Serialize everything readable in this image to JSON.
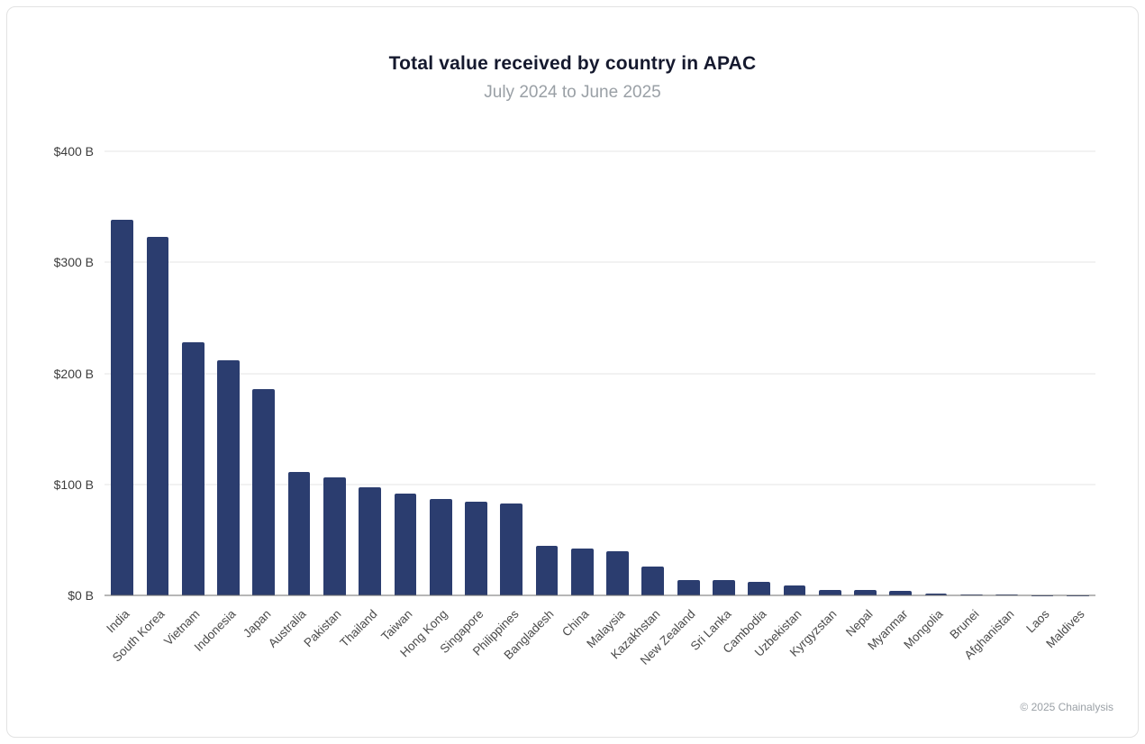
{
  "page": {
    "title": "Total value received by country in APAC",
    "subtitle": "July 2024 to June 2025",
    "footer": "© 2025 Chainalysis"
  },
  "chart_data": {
    "type": "bar",
    "title": "Total value received by country in APAC",
    "subtitle": "July 2024 to June 2025",
    "xlabel": "",
    "ylabel": "",
    "ylim": [
      0,
      400
    ],
    "yticks": [
      0,
      100,
      200,
      300,
      400
    ],
    "ytick_labels": [
      "$0 B",
      "$100 B",
      "$200 B",
      "$300 B",
      "$400 B"
    ],
    "grid": true,
    "legend": "none",
    "bar_color": "#2b3d6f",
    "categories": [
      "India",
      "South Korea",
      "Vietnam",
      "Indonesia",
      "Japan",
      "Australia",
      "Pakistan",
      "Thailand",
      "Taiwan",
      "Hong Kong",
      "Singapore",
      "Philippines",
      "Bangladesh",
      "China",
      "Malaysia",
      "Kazakhstan",
      "New Zealand",
      "Sri Lanka",
      "Cambodia",
      "Uzbekistan",
      "Kyrgyzstan",
      "Nepal",
      "Myanmar",
      "Mongolia",
      "Brunei",
      "Afghanistan",
      "Laos",
      "Maldives"
    ],
    "values": [
      338,
      323,
      228,
      212,
      186,
      111,
      106,
      97,
      92,
      87,
      84,
      83,
      45,
      42,
      40,
      26,
      14,
      14,
      12,
      9,
      5,
      5,
      4,
      1.5,
      0.8,
      0.5,
      0.4,
      0.3
    ]
  }
}
